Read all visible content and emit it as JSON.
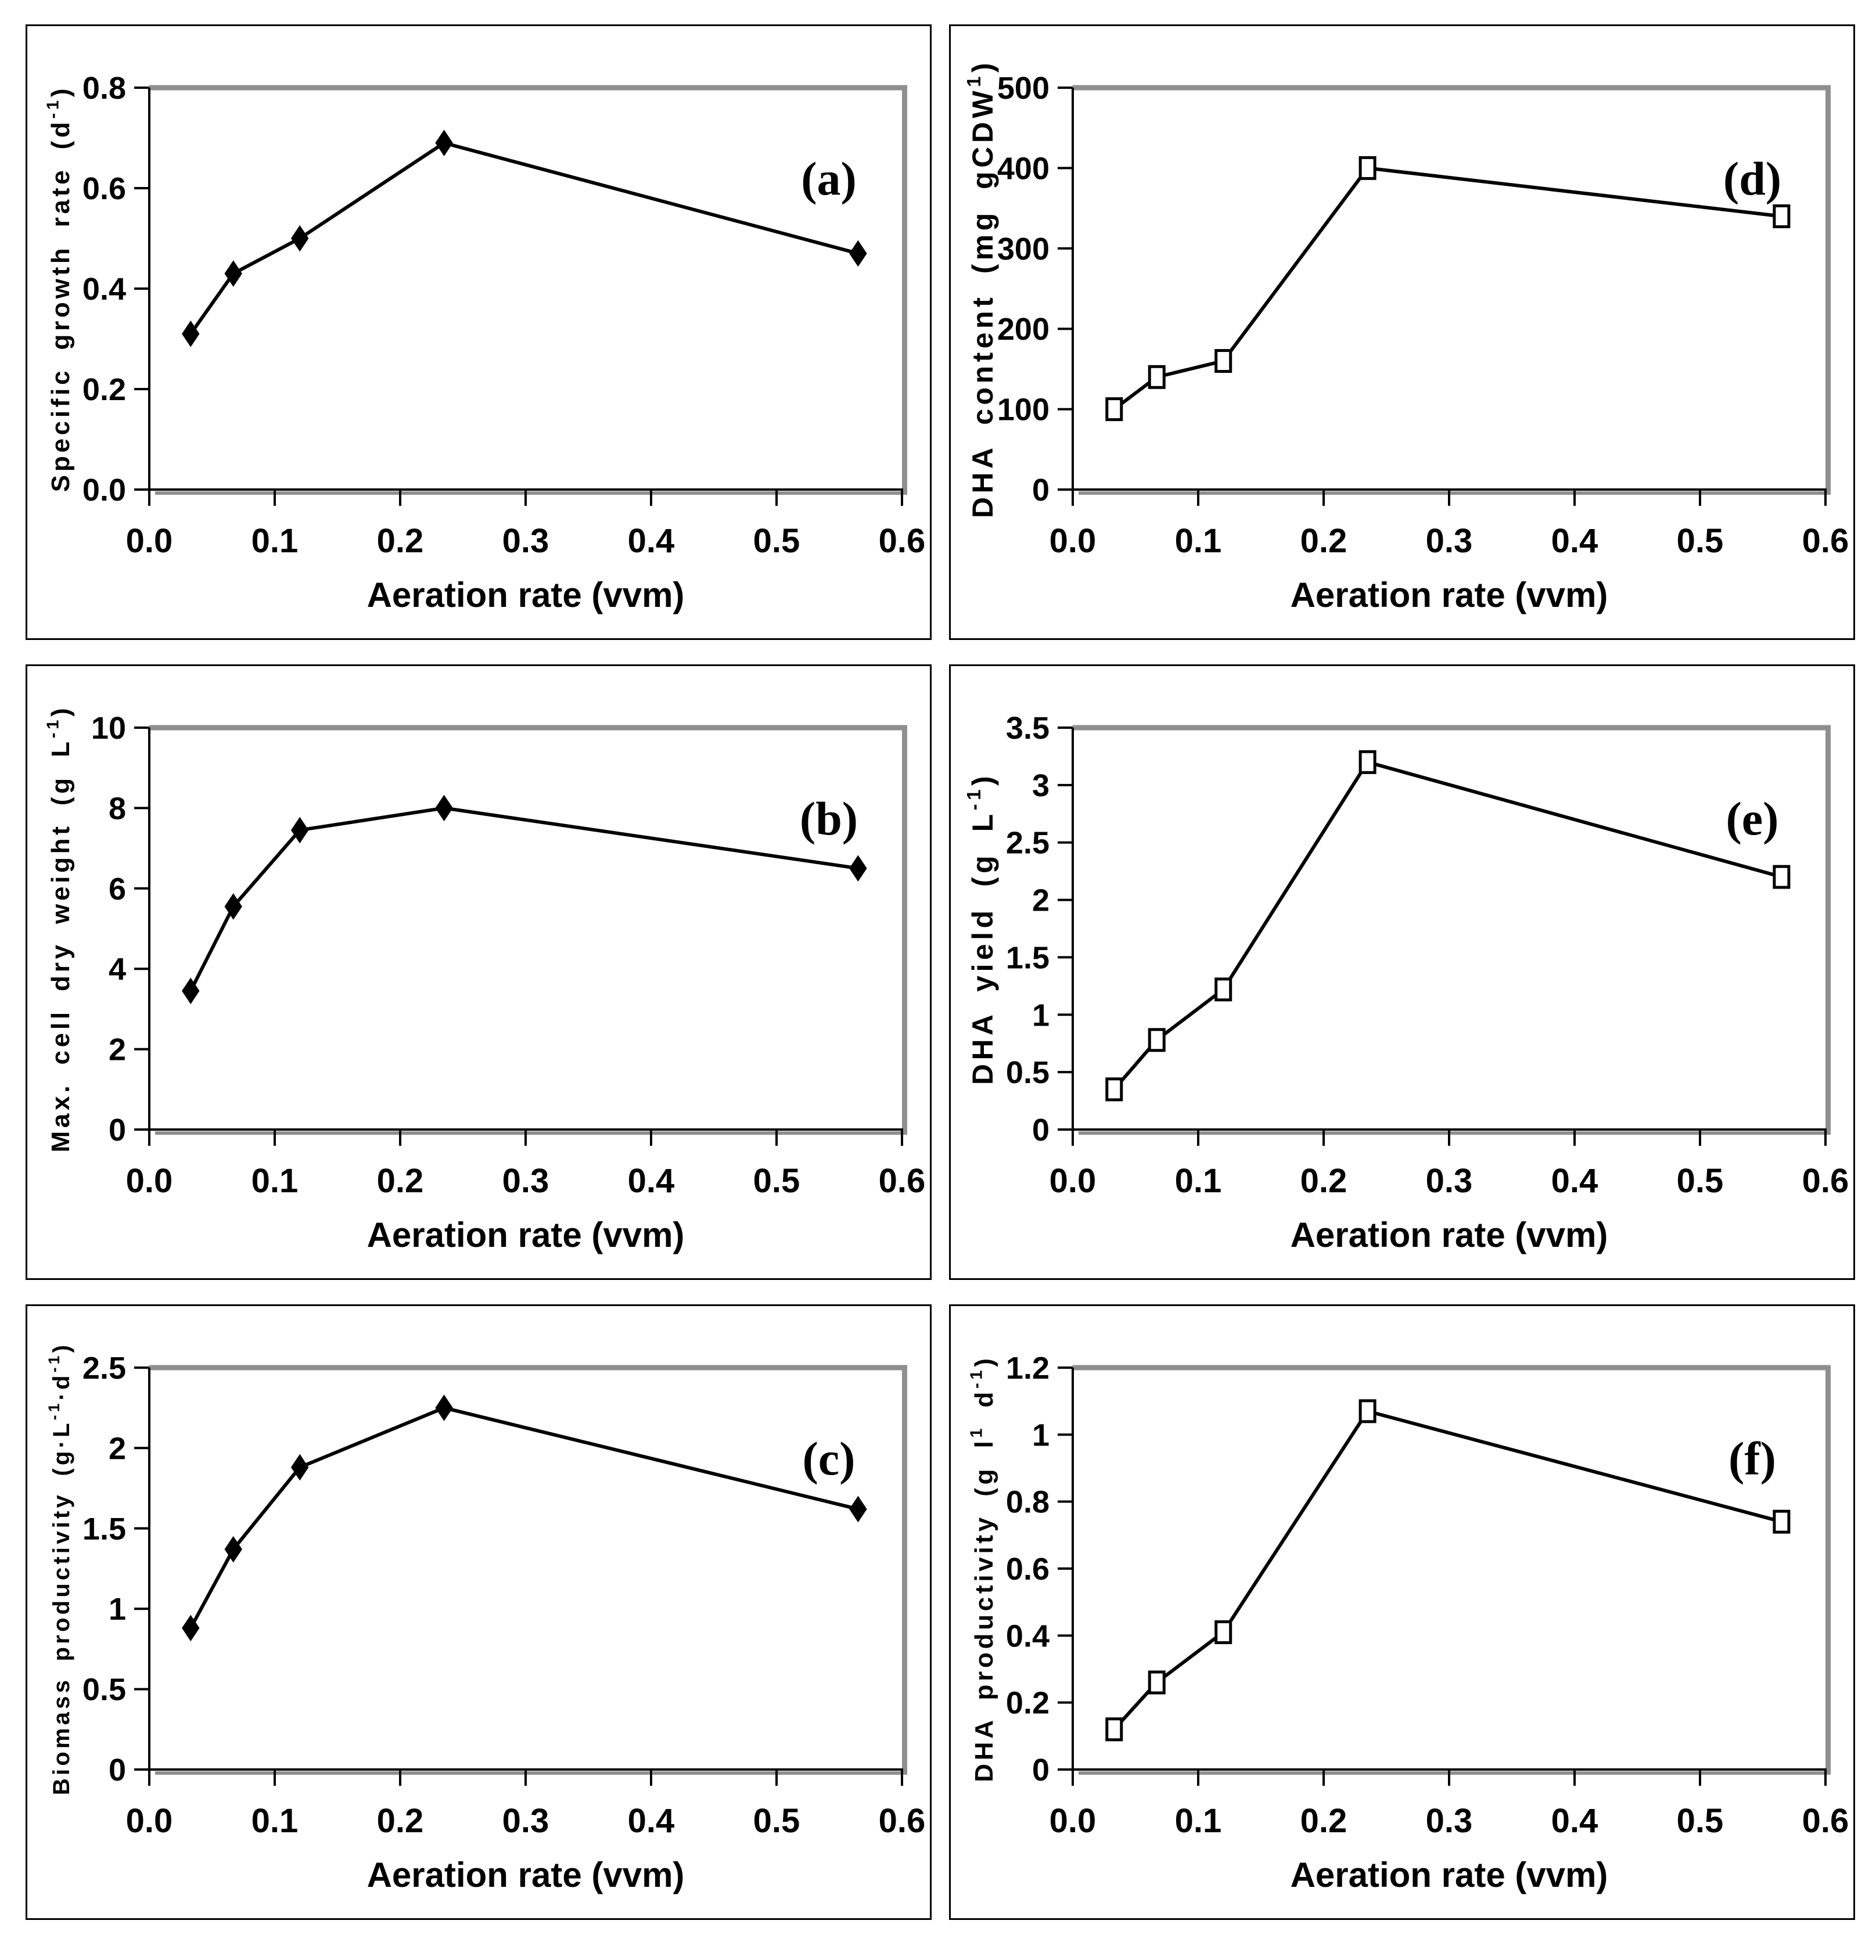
{
  "figure": {
    "background": "#ffffff",
    "panel_border_color": "#000000",
    "axis_color": "#000000",
    "frame_shadow_color": "#8f8f8f",
    "text_color": "#000000",
    "marker_fill_open": "#ffffff"
  },
  "chart_data": [
    {
      "type": "line",
      "panel_label": "(a)",
      "title": "",
      "xlabel": "Aeration rate (vvm)",
      "ylabel": "Specific growth rate (d⁻¹)",
      "ylabel_segments": [
        {
          "t": "Specific growth rate (d",
          "sup": false
        },
        {
          "t": "-1",
          "sup": true
        },
        {
          "t": ")",
          "sup": false
        }
      ],
      "x": [
        0.033,
        0.067,
        0.12,
        0.235,
        0.565
      ],
      "y": [
        0.31,
        0.43,
        0.5,
        0.69,
        0.47
      ],
      "xlim": [
        0,
        0.6
      ],
      "ylim": [
        0,
        0.8
      ],
      "x_ticks": [
        "0.0",
        "0.1",
        "0.2",
        "0.3",
        "0.4",
        "0.5",
        "0.6"
      ],
      "y_ticks": [
        "0.0",
        "0.2",
        "0.4",
        "0.6",
        "0.8"
      ],
      "marker": "filled-diamond",
      "line_color": "#000000",
      "grid": false,
      "legend": null
    },
    {
      "type": "line",
      "panel_label": "(b)",
      "title": "",
      "xlabel": "Aeration rate (vvm)",
      "ylabel": "Max. cell dry weight (g L⁻¹)",
      "ylabel_segments": [
        {
          "t": "Max. cell dry weight (g L",
          "sup": false
        },
        {
          "t": "-1",
          "sup": true
        },
        {
          "t": ")",
          "sup": false
        }
      ],
      "x": [
        0.033,
        0.067,
        0.12,
        0.235,
        0.565
      ],
      "y": [
        3.45,
        5.55,
        7.45,
        8.0,
        6.5
      ],
      "xlim": [
        0,
        0.6
      ],
      "ylim": [
        0,
        10
      ],
      "x_ticks": [
        "0.0",
        "0.1",
        "0.2",
        "0.3",
        "0.4",
        "0.5",
        "0.6"
      ],
      "y_ticks": [
        "0",
        "2",
        "4",
        "6",
        "8",
        "10"
      ],
      "marker": "filled-diamond",
      "line_color": "#000000",
      "grid": false,
      "legend": null
    },
    {
      "type": "line",
      "panel_label": "(c)",
      "title": "",
      "xlabel": "Aeration rate (vvm)",
      "ylabel": "Biomass productivity (g·L⁻¹·d⁻¹)",
      "ylabel_segments": [
        {
          "t": "Biomass productivity (g·L",
          "sup": false
        },
        {
          "t": "-1",
          "sup": true
        },
        {
          "t": "·d",
          "sup": false
        },
        {
          "t": "-1",
          "sup": true
        },
        {
          "t": ")",
          "sup": false
        }
      ],
      "x": [
        0.033,
        0.067,
        0.12,
        0.235,
        0.565
      ],
      "y": [
        0.88,
        1.37,
        1.88,
        2.25,
        1.62
      ],
      "xlim": [
        0,
        0.6
      ],
      "ylim": [
        0,
        2.5
      ],
      "x_ticks": [
        "0.0",
        "0.1",
        "0.2",
        "0.3",
        "0.4",
        "0.5",
        "0.6"
      ],
      "y_ticks": [
        "0",
        "0.5",
        "1",
        "1.5",
        "2",
        "2.5"
      ],
      "marker": "filled-diamond",
      "line_color": "#000000",
      "grid": false,
      "legend": null
    },
    {
      "type": "line",
      "panel_label": "(d)",
      "title": "",
      "xlabel": "Aeration rate (vvm)",
      "ylabel": "DHA content (mg gCDW¹)",
      "ylabel_segments": [
        {
          "t": "DHA content (mg gCDW",
          "sup": false
        },
        {
          "t": "1",
          "sup": true
        },
        {
          "t": ")",
          "sup": false
        }
      ],
      "x": [
        0.033,
        0.067,
        0.12,
        0.235,
        0.565
      ],
      "y": [
        100,
        140,
        160,
        400,
        340
      ],
      "xlim": [
        0,
        0.6
      ],
      "ylim": [
        0,
        500
      ],
      "x_ticks": [
        "0.0",
        "0.1",
        "0.2",
        "0.3",
        "0.4",
        "0.5",
        "0.6"
      ],
      "y_ticks": [
        "0",
        "100",
        "200",
        "300",
        "400",
        "500"
      ],
      "marker": "open-square",
      "line_color": "#000000",
      "grid": false,
      "legend": null
    },
    {
      "type": "line",
      "panel_label": "(e)",
      "title": "",
      "xlabel": "Aeration rate (vvm)",
      "ylabel": "DHA yield (g L⁻¹)",
      "ylabel_segments": [
        {
          "t": "DHA yield (g L",
          "sup": false
        },
        {
          "t": "-1",
          "sup": true
        },
        {
          "t": ")",
          "sup": false
        }
      ],
      "x": [
        0.033,
        0.067,
        0.12,
        0.235,
        0.565
      ],
      "y": [
        0.35,
        0.78,
        1.22,
        3.2,
        2.2
      ],
      "xlim": [
        0,
        0.6
      ],
      "ylim": [
        0,
        3.5
      ],
      "x_ticks": [
        "0.0",
        "0.1",
        "0.2",
        "0.3",
        "0.4",
        "0.5",
        "0.6"
      ],
      "y_ticks": [
        "0",
        "0.5",
        "1",
        "1.5",
        "2",
        "2.5",
        "3",
        "3.5"
      ],
      "marker": "open-square",
      "line_color": "#000000",
      "grid": false,
      "legend": null
    },
    {
      "type": "line",
      "panel_label": "(f)",
      "title": "",
      "xlabel": "Aeration rate (vvm)",
      "ylabel": "DHA productivity (g l¹ d⁻¹)",
      "ylabel_segments": [
        {
          "t": "DHA productivity (g l",
          "sup": false
        },
        {
          "t": "1",
          "sup": true
        },
        {
          "t": " d",
          "sup": false
        },
        {
          "t": "-1",
          "sup": true
        },
        {
          "t": ")",
          "sup": false
        }
      ],
      "x": [
        0.033,
        0.067,
        0.12,
        0.235,
        0.565
      ],
      "y": [
        0.12,
        0.26,
        0.41,
        1.07,
        0.74
      ],
      "xlim": [
        0,
        0.6
      ],
      "ylim": [
        0,
        1.2
      ],
      "x_ticks": [
        "0.0",
        "0.1",
        "0.2",
        "0.3",
        "0.4",
        "0.5",
        "0.6"
      ],
      "y_ticks": [
        "0",
        "0.2",
        "0.4",
        "0.6",
        "0.8",
        "1",
        "1.2"
      ],
      "marker": "open-square",
      "line_color": "#000000",
      "grid": false,
      "legend": null
    }
  ]
}
